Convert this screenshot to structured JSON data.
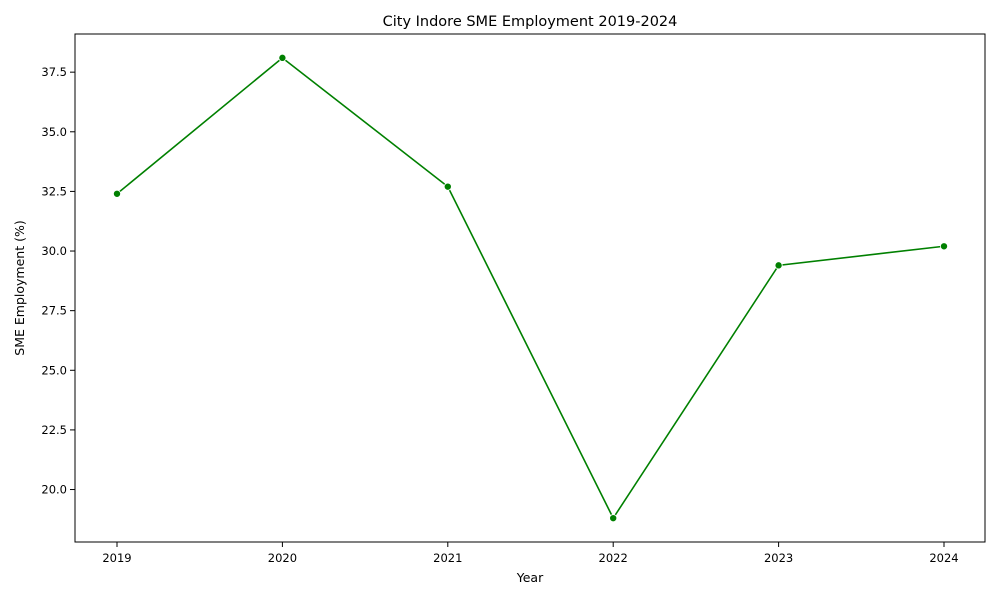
{
  "chart_data": {
    "type": "line",
    "title": "City Indore SME Employment 2019-2024",
    "xlabel": "Year",
    "ylabel": "SME Employment (%)",
    "x": [
      "2019",
      "2020",
      "2021",
      "2022",
      "2023",
      "2024"
    ],
    "series": [
      {
        "values": [
          32.4,
          38.1,
          32.7,
          18.8,
          29.4,
          30.2
        ],
        "color": "#008000",
        "marker": "circle"
      }
    ],
    "xticks": [
      "2019",
      "2020",
      "2021",
      "2022",
      "2023",
      "2024"
    ],
    "yticks": [
      "20.0",
      "22.5",
      "25.0",
      "27.5",
      "30.0",
      "32.5",
      "35.0",
      "37.5"
    ],
    "ylim": [
      17.8,
      39.1
    ],
    "grid": false,
    "legend": "none"
  }
}
